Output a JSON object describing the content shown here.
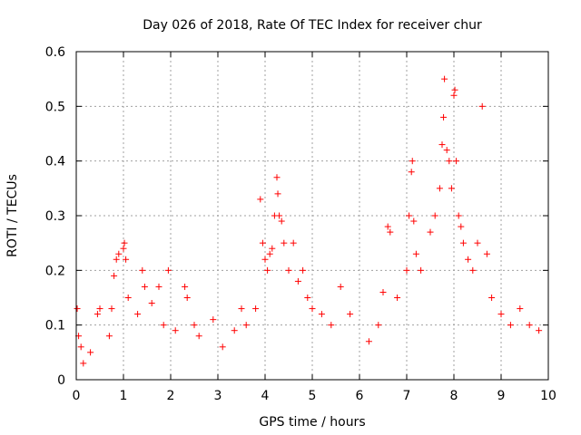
{
  "chart_data": {
    "type": "scatter",
    "title": "Day 026 of 2018, Rate Of TEC Index for receiver chur",
    "xlabel": "GPS time / hours",
    "ylabel": "ROTI / TECUs",
    "xlim": [
      0,
      10
    ],
    "ylim": [
      0,
      0.6
    ],
    "xticks": [
      "0",
      "1",
      "2",
      "3",
      "4",
      "5",
      "6",
      "7",
      "8",
      "9",
      "10"
    ],
    "yticks": [
      "0",
      "0.1",
      "0.2",
      "0.3",
      "0.4",
      "0.5",
      "0.6"
    ],
    "grid": true,
    "marker": "+",
    "color": "#ff0000",
    "series": [
      {
        "name": "ROTI",
        "points": [
          [
            0.02,
            0.13
          ],
          [
            0.05,
            0.08
          ],
          [
            0.1,
            0.06
          ],
          [
            0.15,
            0.03
          ],
          [
            0.3,
            0.05
          ],
          [
            0.45,
            0.12
          ],
          [
            0.5,
            0.13
          ],
          [
            0.7,
            0.08
          ],
          [
            0.75,
            0.13
          ],
          [
            0.8,
            0.19
          ],
          [
            0.85,
            0.22
          ],
          [
            0.9,
            0.23
          ],
          [
            1.0,
            0.24
          ],
          [
            1.02,
            0.25
          ],
          [
            1.05,
            0.22
          ],
          [
            1.1,
            0.15
          ],
          [
            1.3,
            0.12
          ],
          [
            1.4,
            0.2
          ],
          [
            1.45,
            0.17
          ],
          [
            1.6,
            0.14
          ],
          [
            1.75,
            0.17
          ],
          [
            1.85,
            0.1
          ],
          [
            1.95,
            0.2
          ],
          [
            2.1,
            0.09
          ],
          [
            2.3,
            0.17
          ],
          [
            2.35,
            0.15
          ],
          [
            2.5,
            0.1
          ],
          [
            2.6,
            0.08
          ],
          [
            2.9,
            0.11
          ],
          [
            3.1,
            0.06
          ],
          [
            3.35,
            0.09
          ],
          [
            3.5,
            0.13
          ],
          [
            3.6,
            0.1
          ],
          [
            3.8,
            0.13
          ],
          [
            3.9,
            0.33
          ],
          [
            3.95,
            0.25
          ],
          [
            4.0,
            0.22
          ],
          [
            4.05,
            0.2
          ],
          [
            4.1,
            0.23
          ],
          [
            4.15,
            0.24
          ],
          [
            4.2,
            0.3
          ],
          [
            4.25,
            0.37
          ],
          [
            4.27,
            0.34
          ],
          [
            4.3,
            0.3
          ],
          [
            4.35,
            0.29
          ],
          [
            4.4,
            0.25
          ],
          [
            4.5,
            0.2
          ],
          [
            4.6,
            0.25
          ],
          [
            4.7,
            0.18
          ],
          [
            4.8,
            0.2
          ],
          [
            4.9,
            0.15
          ],
          [
            5.0,
            0.13
          ],
          [
            5.2,
            0.12
          ],
          [
            5.4,
            0.1
          ],
          [
            5.6,
            0.17
          ],
          [
            5.8,
            0.12
          ],
          [
            6.2,
            0.07
          ],
          [
            6.4,
            0.1
          ],
          [
            6.5,
            0.16
          ],
          [
            6.6,
            0.28
          ],
          [
            6.65,
            0.27
          ],
          [
            6.8,
            0.15
          ],
          [
            7.0,
            0.2
          ],
          [
            7.05,
            0.3
          ],
          [
            7.1,
            0.38
          ],
          [
            7.12,
            0.4
          ],
          [
            7.15,
            0.29
          ],
          [
            7.2,
            0.23
          ],
          [
            7.3,
            0.2
          ],
          [
            7.5,
            0.27
          ],
          [
            7.6,
            0.3
          ],
          [
            7.7,
            0.35
          ],
          [
            7.75,
            0.43
          ],
          [
            7.78,
            0.48
          ],
          [
            7.8,
            0.55
          ],
          [
            7.85,
            0.42
          ],
          [
            7.9,
            0.4
          ],
          [
            7.95,
            0.35
          ],
          [
            8.0,
            0.52
          ],
          [
            8.02,
            0.53
          ],
          [
            8.05,
            0.4
          ],
          [
            8.1,
            0.3
          ],
          [
            8.15,
            0.28
          ],
          [
            8.2,
            0.25
          ],
          [
            8.3,
            0.22
          ],
          [
            8.4,
            0.2
          ],
          [
            8.5,
            0.25
          ],
          [
            8.6,
            0.5
          ],
          [
            8.7,
            0.23
          ],
          [
            8.8,
            0.15
          ],
          [
            9.0,
            0.12
          ],
          [
            9.2,
            0.1
          ],
          [
            9.4,
            0.13
          ],
          [
            9.6,
            0.1
          ],
          [
            9.8,
            0.09
          ]
        ]
      }
    ]
  }
}
